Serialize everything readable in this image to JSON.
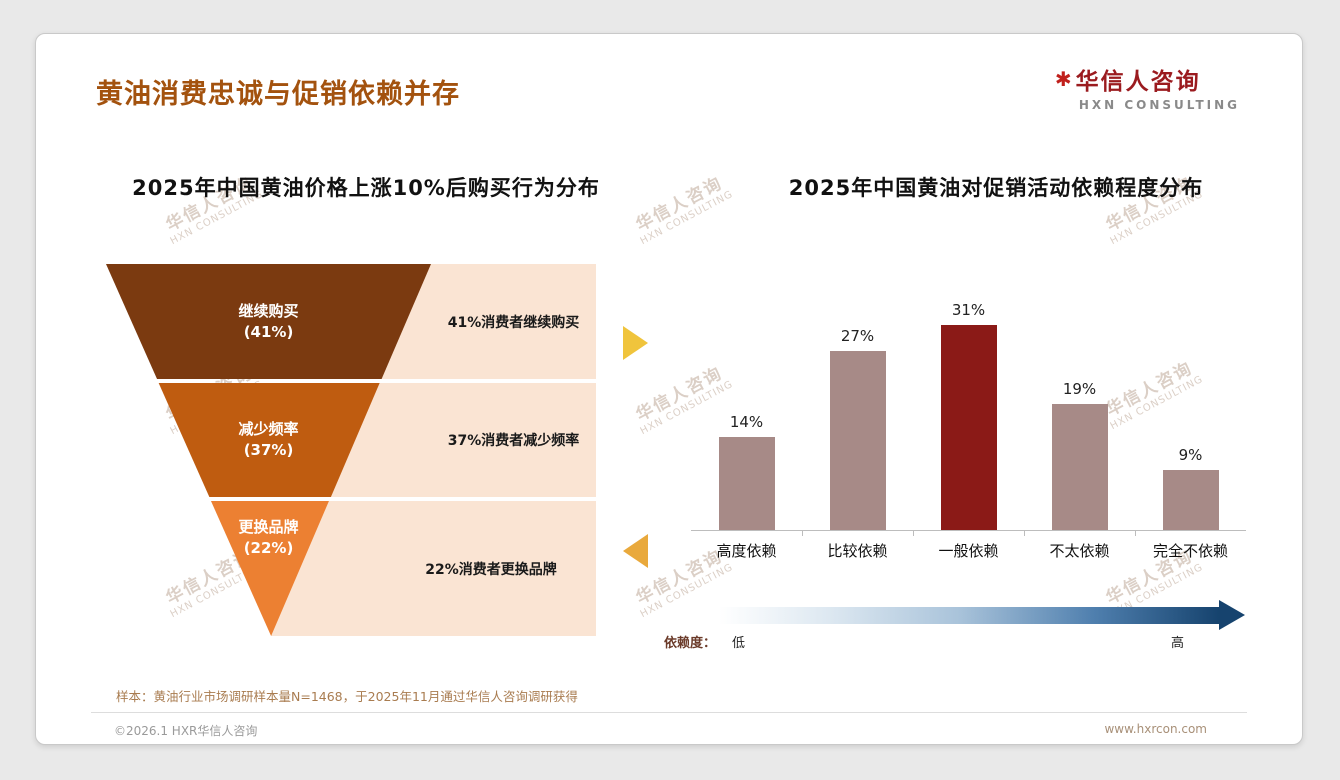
{
  "slide": {
    "title": "黄油消费忠诚与促销依赖并存",
    "logo": {
      "mark": "✱",
      "name": "华信人咨询",
      "tagline": "HXN CONSULTING"
    },
    "watermark": {
      "line1": "华信人咨询",
      "line2": "HXN CONSULTING"
    },
    "sample_note": "样本：黄油行业市场调研样本量N=1468，于2025年11月通过华信人咨询调研获得",
    "footer": {
      "copyright": "©2026.1 HXR华信人咨询",
      "website": "www.hxrcon.com"
    }
  },
  "chart_data": [
    {
      "type": "funnel",
      "title": "2025年中国黄油价格上涨10%后购买行为分布",
      "panel_color": "#FAE4D3",
      "stages": [
        {
          "label": "继续购买",
          "value": 41,
          "value_label": "(41%)",
          "annotation": "41%消费者继续购买",
          "color": "#7B3A10"
        },
        {
          "label": "减少频率",
          "value": 37,
          "value_label": "(37%)",
          "annotation": "37%消费者减少频率",
          "color": "#BF5C10"
        },
        {
          "label": "更换品牌",
          "value": 22,
          "value_label": "(22%)",
          "annotation": "22%消费者更换品牌",
          "color": "#EC8032"
        }
      ]
    },
    {
      "type": "bar",
      "title": "2025年中国黄油对促销活动依赖程度分布",
      "categories": [
        "高度依赖",
        "比较依赖",
        "一般依赖",
        "不太依赖",
        "完全不依赖"
      ],
      "values": [
        14,
        27,
        31,
        19,
        9
      ],
      "value_labels": [
        "14%",
        "27%",
        "31%",
        "19%",
        "9%"
      ],
      "highlight_index": 2,
      "bar_color": "#A78A87",
      "highlight_color": "#8B1A17",
      "ylim": [
        0,
        35
      ],
      "legend": {
        "label": "依赖度：",
        "low": "低",
        "high": "高"
      }
    }
  ]
}
